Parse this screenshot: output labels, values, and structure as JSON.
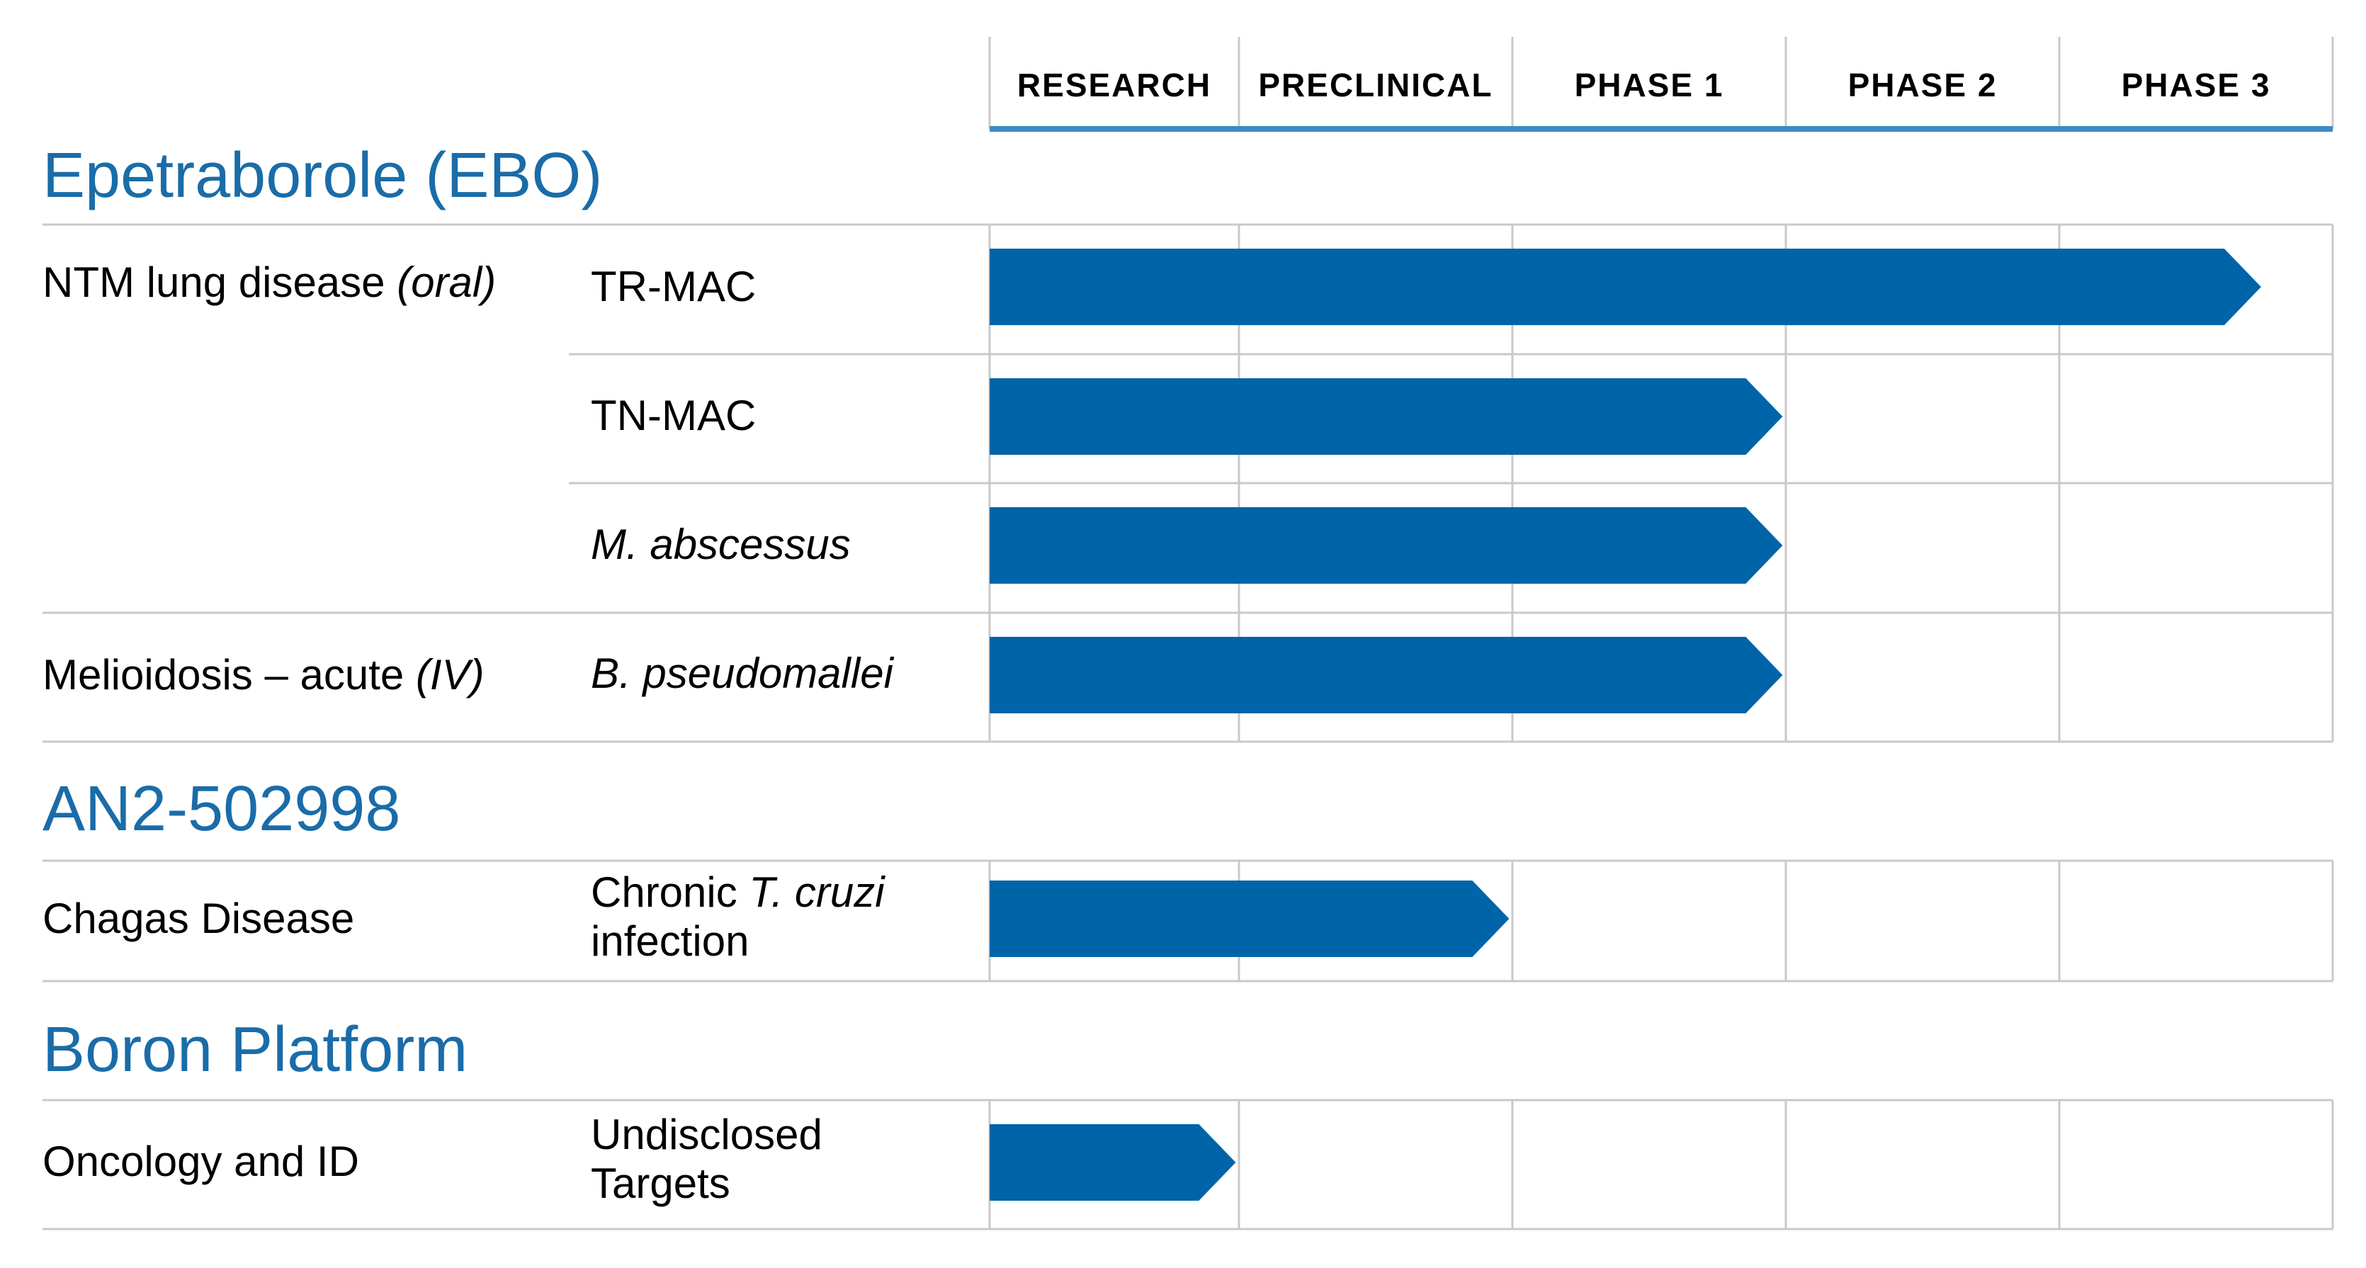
{
  "phases": [
    "RESEARCH",
    "PRECLINICAL",
    "PHASE 1",
    "PHASE 2",
    "PHASE 3"
  ],
  "colors": {
    "bar": "#0064a8",
    "header_rule": "#3a8cc4",
    "title": "#1a6ca8",
    "grid": "#c9c9c9"
  },
  "sections": [
    {
      "title": "Epetraborole (EBO)"
    },
    {
      "title": "AN2-502998"
    },
    {
      "title": "Boron Platform"
    }
  ],
  "rows": [
    {
      "indication": "NTM lung disease",
      "indication_italic": "(oral)",
      "target_plain": "TR-MAC",
      "target_italic": ""
    },
    {
      "indication": "",
      "indication_italic": "",
      "target_plain": "TN-MAC",
      "target_italic": ""
    },
    {
      "indication": "",
      "indication_italic": "",
      "target_plain": "",
      "target_italic": "M. abscessus"
    },
    {
      "indication": "Melioidosis – acute",
      "indication_italic": "(IV)",
      "target_plain": "",
      "target_italic": "B. pseudomallei"
    },
    {
      "indication": "Chagas Disease",
      "indication_italic": "",
      "target_plain": "Chronic",
      "target_italic": "T. cruzi",
      "target_line2": "infection"
    },
    {
      "indication": "Oncology and ID",
      "indication_italic": "",
      "target_plain": "Undisclosed",
      "target_italic": "",
      "target_line2": "Targets"
    }
  ],
  "chart_data": {
    "type": "bar",
    "orientation": "horizontal",
    "categories": [
      "TR-MAC",
      "TN-MAC",
      "M. abscessus",
      "B. pseudomallei",
      "Chronic T. cruzi infection",
      "Undisclosed Targets"
    ],
    "x_scale": [
      "RESEARCH",
      "PRECLINICAL",
      "PHASE 1",
      "PHASE 2",
      "PHASE 3"
    ],
    "values": [
      4.65,
      2.9,
      2.9,
      2.9,
      1.9,
      0.9
    ],
    "value_unit": "phase columns from start of RESEARCH",
    "xlim": [
      0,
      5
    ]
  }
}
